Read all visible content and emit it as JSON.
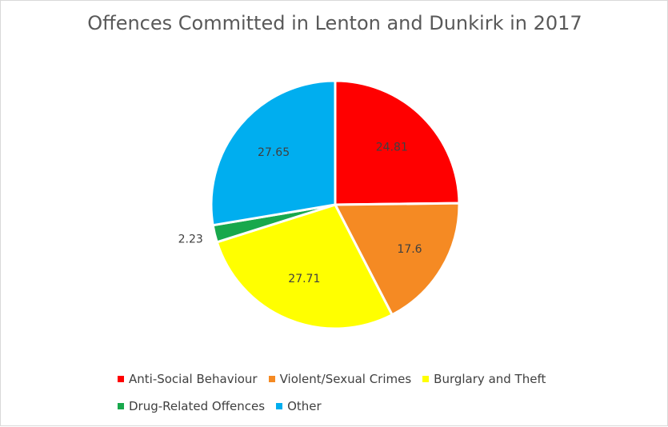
{
  "chart_data": {
    "type": "pie",
    "title": "Offences Committed in Lenton and Dunkirk in 2017",
    "categories": [
      "Anti-Social Behaviour",
      "Violent/Sexual Crimes",
      "Burglary and Theft",
      "Drug-Related Offences",
      "Other"
    ],
    "values": [
      24.81,
      17.6,
      27.71,
      2.23,
      27.65
    ],
    "data_labels": [
      "24.81",
      "17.6",
      "27.71",
      "2.23",
      "27.65"
    ],
    "colors": [
      "#ff0000",
      "#f58a23",
      "#ffff00",
      "#18a84c",
      "#00aeef"
    ],
    "start_angle": "12 o'clock",
    "direction": "clockwise",
    "legend_position": "bottom"
  }
}
